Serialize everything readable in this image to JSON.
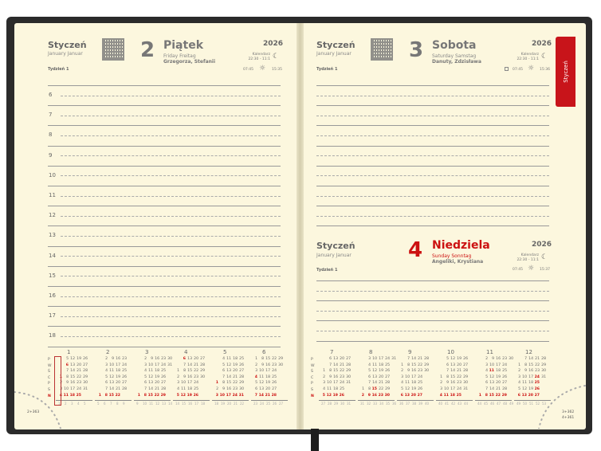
{
  "left_page": {
    "month": "Styczeń",
    "month_sub": "January Januar",
    "week": "Tydzień 1",
    "day": "2",
    "day_name": "Piątek",
    "day_name_sub": "Friday Freitag",
    "name_days": "Grzegorza, Stefanii",
    "year": "2026",
    "moon_label": "Kalendarz",
    "moon_time": "22:30 - 11:1",
    "sunrise": "07:45",
    "sunset": "15:35",
    "hours": [
      "6",
      "7",
      "8",
      "9",
      "10",
      "11",
      "12",
      "13",
      "14",
      "15",
      "16",
      "17",
      "18"
    ],
    "page_counter": "2+363"
  },
  "right_page": {
    "saturday": {
      "month": "Styczeń",
      "month_sub": "January Januar",
      "week": "Tydzień 1",
      "day": "3",
      "day_name": "Sobota",
      "day_name_sub": "Saturday Samstag",
      "name_days": "Danuty, Zdzisława",
      "year": "2026",
      "moon_label": "Kalendarz",
      "moon_time": "22:30 - 11:1",
      "sunrise": "07:45",
      "sunset": "15:36"
    },
    "sunday": {
      "month": "Styczeń",
      "month_sub": "January Januar",
      "week": "Tydzień 1",
      "day": "4",
      "day_name": "Niedziela",
      "day_name_sub": "Sunday Sonntag",
      "name_days": "Angeliki, Krystiana",
      "year": "2026",
      "moon_label": "Kalendarz",
      "moon_time": "22:30 - 11:1",
      "sunrise": "07:45",
      "sunset": "15:37"
    },
    "page_counter_1": "3+362",
    "page_counter_2": "4+361"
  },
  "tab_label": "Styczeń",
  "colors": {
    "accent": "#cc1111",
    "page": "#fcf7de",
    "cover": "#2b2b2b"
  },
  "weekday_labels": [
    "P",
    "W",
    "Ś",
    "C",
    "P",
    "S",
    "N"
  ],
  "calendar": [
    {
      "m": "1",
      "first": 3,
      "days": 31,
      "weeks": [
        "1",
        "2",
        "3",
        "4",
        "5"
      ],
      "red": [
        1,
        6
      ]
    },
    {
      "m": "2",
      "first": 6,
      "days": 28,
      "weeks": [
        "5",
        "6",
        "7",
        "8",
        "9"
      ],
      "red": []
    },
    {
      "m": "3",
      "first": 6,
      "days": 31,
      "weeks": [
        "9",
        "10",
        "11",
        "12",
        "13",
        "14"
      ],
      "red": []
    },
    {
      "m": "4",
      "first": 2,
      "days": 30,
      "weeks": [
        "14",
        "15",
        "16",
        "17",
        "18"
      ],
      "red": [
        5,
        6
      ]
    },
    {
      "m": "5",
      "first": 4,
      "days": 31,
      "weeks": [
        "18",
        "19",
        "20",
        "21",
        "22"
      ],
      "red": [
        1,
        3,
        24
      ]
    },
    {
      "m": "6",
      "first": 0,
      "days": 30,
      "weeks": [
        "23",
        "24",
        "25",
        "26",
        "27"
      ],
      "red": [
        4
      ]
    },
    {
      "m": "7",
      "first": 2,
      "days": 31,
      "weeks": [
        "27",
        "28",
        "29",
        "30",
        "31"
      ],
      "red": []
    },
    {
      "m": "8",
      "first": 5,
      "days": 31,
      "weeks": [
        "31",
        "32",
        "33",
        "34",
        "35",
        "36"
      ],
      "red": [
        15
      ]
    },
    {
      "m": "9",
      "first": 1,
      "days": 30,
      "weeks": [
        "36",
        "37",
        "38",
        "39",
        "40"
      ],
      "red": []
    },
    {
      "m": "10",
      "first": 3,
      "days": 31,
      "weeks": [
        "40",
        "41",
        "42",
        "43",
        "44"
      ],
      "red": []
    },
    {
      "m": "11",
      "first": 6,
      "days": 30,
      "weeks": [
        "44",
        "45",
        "46",
        "47",
        "48",
        "49"
      ],
      "red": [
        1,
        11
      ]
    },
    {
      "m": "12",
      "first": 1,
      "days": 31,
      "weeks": [
        "49",
        "50",
        "51",
        "52",
        "53"
      ],
      "red": [
        24,
        25,
        26
      ]
    }
  ]
}
